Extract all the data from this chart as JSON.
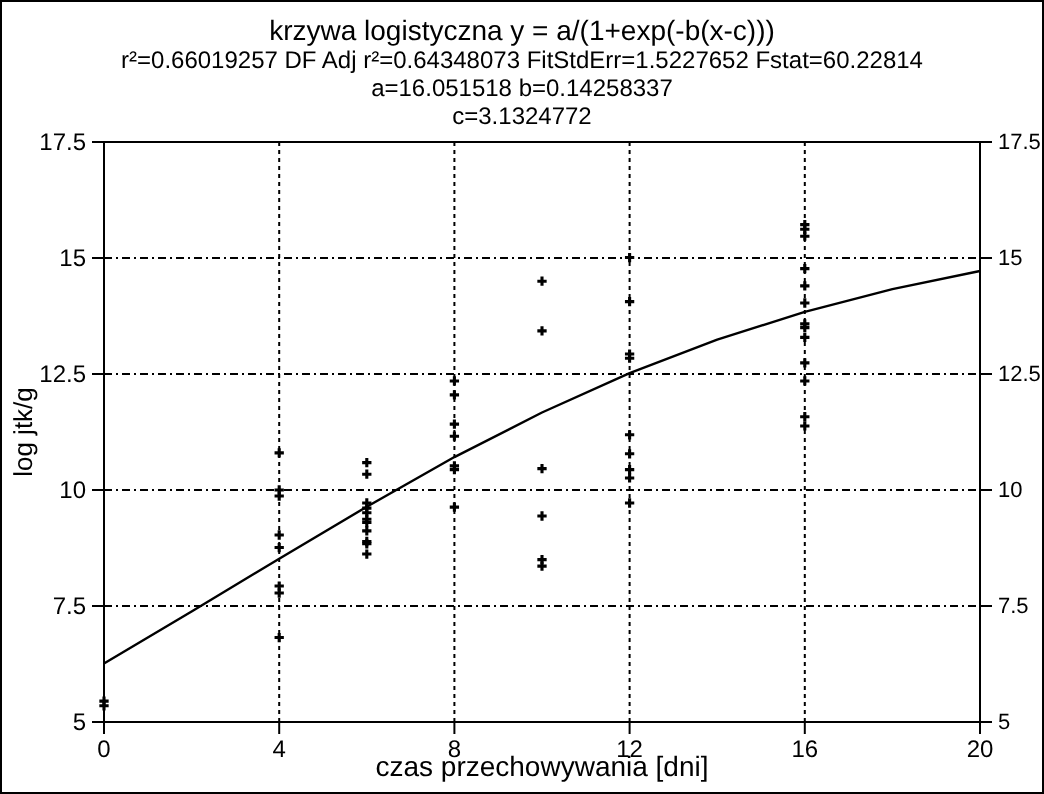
{
  "chart_data": {
    "type": "scatter",
    "title": "krzywa logistyczna y = a/(1+exp(-b(x-c)))",
    "subtitle": "r²=0.66019257  DF Adj r²=0.64348073  FitStdErr=1.5227652  Fstat=60.22814",
    "annotations": [
      "a=16.051518 b=0.14258337",
      "c=3.1324772"
    ],
    "xlabel": "czas przechowywania [dni]",
    "ylabel": "log jtk/g",
    "xlim": [
      0,
      20
    ],
    "xticks": [
      0,
      4,
      8,
      12,
      16,
      20
    ],
    "ylim": [
      5,
      17.5
    ],
    "yticks": [
      5,
      7.5,
      10,
      12.5,
      15,
      17.5
    ],
    "y2lim": [
      5,
      17.5
    ],
    "y2ticks": [
      5,
      7.5,
      10,
      12.5,
      15,
      17.5
    ],
    "grid": true,
    "series": [
      {
        "marker": "cross",
        "color": "#000000",
        "x": [
          0,
          0,
          4,
          4,
          4,
          4,
          4,
          4,
          4,
          4,
          6,
          6,
          6,
          6,
          6,
          6,
          6,
          6,
          6,
          6,
          6,
          8,
          8,
          8,
          8,
          8,
          8,
          8,
          10,
          10,
          10,
          10,
          10,
          10,
          12,
          12,
          12,
          12,
          12,
          12,
          12,
          12,
          12,
          16,
          16,
          16,
          16,
          16,
          16,
          16,
          16,
          16,
          16,
          16,
          16,
          16
        ],
        "values": [
          5.45,
          5.35,
          10.8,
          10.0,
          9.87,
          9.03,
          8.76,
          7.93,
          7.78,
          6.82,
          10.59,
          10.34,
          9.72,
          9.61,
          9.51,
          9.37,
          9.3,
          9.12,
          8.89,
          8.84,
          8.62,
          12.35,
          12.05,
          11.42,
          11.16,
          10.52,
          10.44,
          9.63,
          14.5,
          13.43,
          10.46,
          9.44,
          8.5,
          8.36,
          15.01,
          14.06,
          12.93,
          12.84,
          11.19,
          10.78,
          10.44,
          10.26,
          9.72,
          15.72,
          15.62,
          15.47,
          14.77,
          14.4,
          14.03,
          13.58,
          13.5,
          13.29,
          12.74,
          12.35,
          11.58,
          11.38
        ]
      },
      {
        "type": "line",
        "color": "#000000",
        "line_style": "solid",
        "x": [
          0,
          2,
          4,
          6,
          8,
          10,
          12,
          14,
          16,
          18,
          20
        ],
        "values": [
          6.26,
          7.38,
          8.52,
          9.64,
          10.71,
          11.67,
          12.52,
          13.24,
          13.84,
          14.33,
          14.72
        ]
      }
    ]
  }
}
